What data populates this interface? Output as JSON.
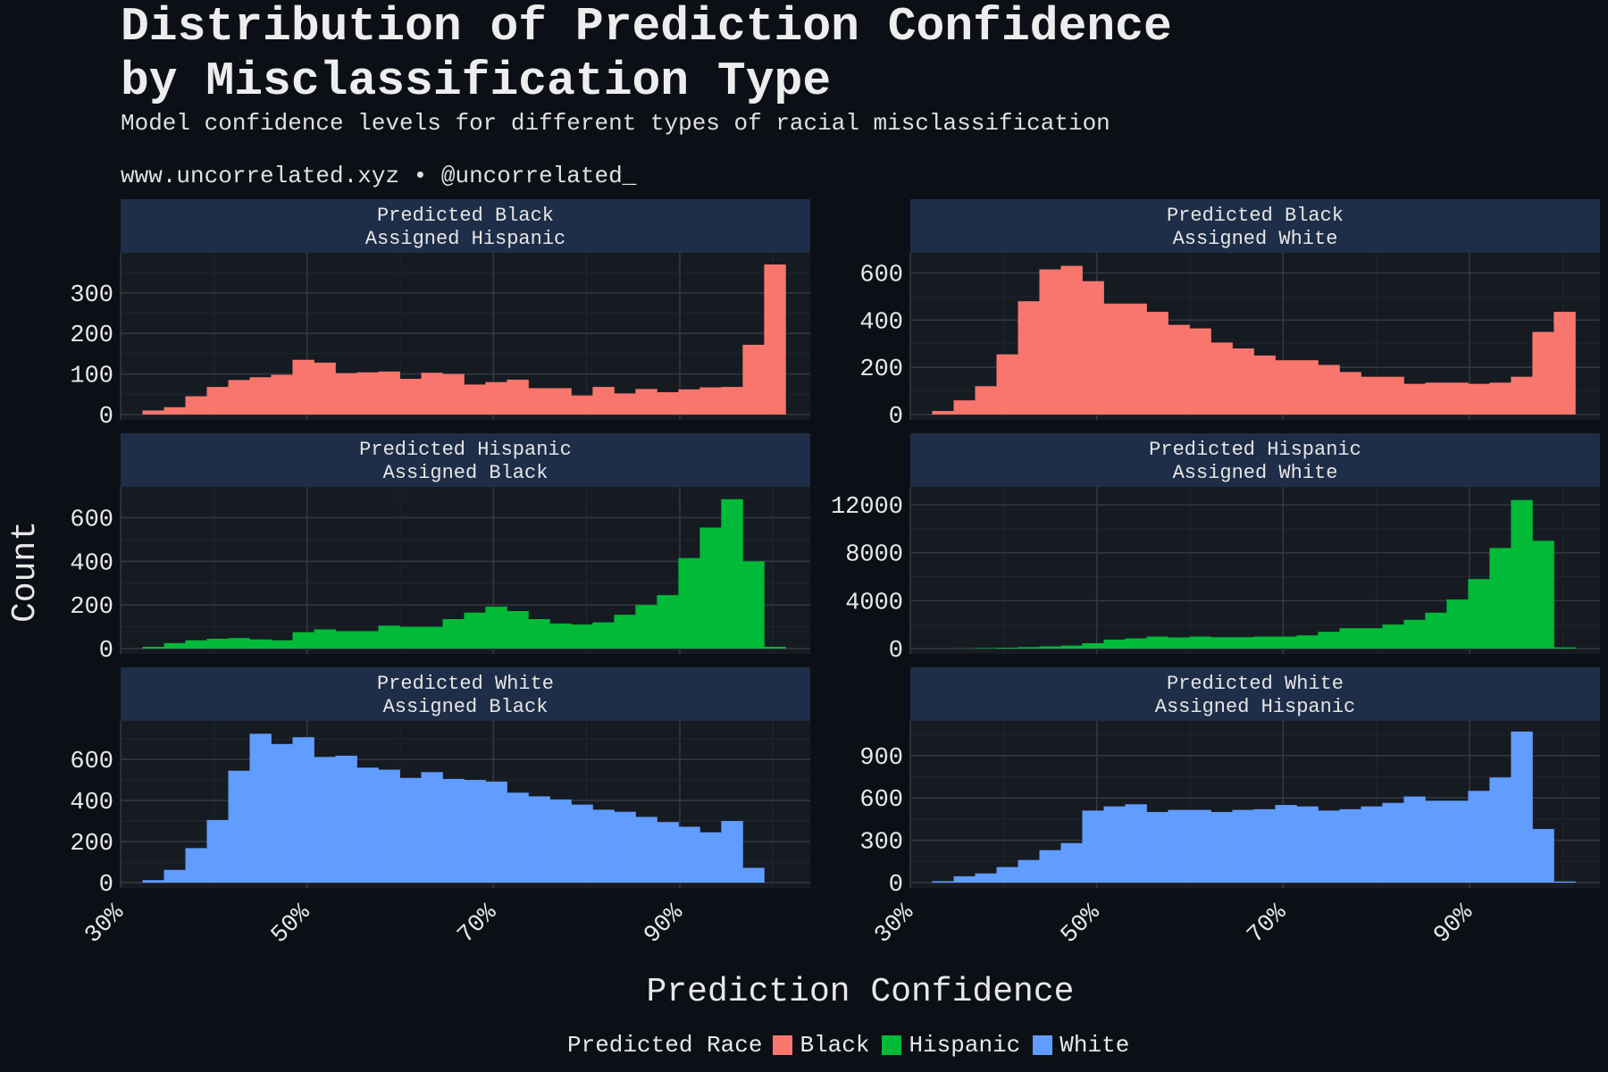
{
  "chart_data": {
    "type": "bar",
    "title": "Distribution of Prediction Confidence\nby Misclassification Type",
    "subtitle": "Model confidence levels for different types of racial misclassification",
    "caption": "www.uncorrelated.xyz • @uncorrelated_",
    "xlabel": "Prediction Confidence",
    "ylabel": "Count",
    "x_ticks": [
      0.3,
      0.5,
      0.7,
      0.9
    ],
    "x_tick_labels": [
      "30%",
      "50%",
      "70%",
      "90%"
    ],
    "xlim": [
      0.3,
      1.04
    ],
    "bin_centers": [
      0.335,
      0.358,
      0.381,
      0.404,
      0.427,
      0.45,
      0.473,
      0.496,
      0.519,
      0.542,
      0.565,
      0.588,
      0.611,
      0.634,
      0.657,
      0.68,
      0.703,
      0.726,
      0.749,
      0.772,
      0.795,
      0.818,
      0.841,
      0.864,
      0.887,
      0.91,
      0.933,
      0.956,
      0.979,
      1.002
    ],
    "legend": {
      "title": "Predicted Race",
      "entries": [
        {
          "label": "Black",
          "color": "#f8766d"
        },
        {
          "label": "Hispanic",
          "color": "#00ba38"
        },
        {
          "label": "White",
          "color": "#619cff"
        }
      ]
    },
    "panels": [
      {
        "strip": [
          "Predicted Black",
          "Assigned Hispanic"
        ],
        "color": "#f8766d",
        "y_ticks": [
          0,
          100,
          200,
          300
        ],
        "ylim": [
          0,
          390
        ],
        "values": [
          10,
          18,
          45,
          68,
          85,
          92,
          98,
          135,
          128,
          102,
          104,
          106,
          88,
          103,
          100,
          74,
          80,
          86,
          65,
          65,
          47,
          68,
          52,
          63,
          55,
          62,
          67,
          68,
          172,
          370
        ]
      },
      {
        "strip": [
          "Predicted Black",
          "Assigned White"
        ],
        "color": "#f8766d",
        "y_ticks": [
          0,
          200,
          400,
          600
        ],
        "ylim": [
          0,
          670
        ],
        "values": [
          15,
          60,
          120,
          255,
          480,
          615,
          630,
          565,
          470,
          470,
          435,
          380,
          365,
          305,
          280,
          250,
          230,
          230,
          210,
          180,
          160,
          160,
          130,
          135,
          135,
          130,
          135,
          160,
          350,
          435
        ]
      },
      {
        "strip": [
          "Predicted Hispanic",
          "Assigned Black"
        ],
        "color": "#00ba38",
        "y_ticks": [
          0,
          200,
          400,
          600
        ],
        "ylim": [
          0,
          725
        ],
        "values": [
          8,
          25,
          38,
          45,
          48,
          42,
          38,
          75,
          88,
          80,
          80,
          105,
          100,
          100,
          135,
          165,
          192,
          172,
          135,
          115,
          110,
          120,
          155,
          200,
          245,
          415,
          555,
          685,
          400,
          8
        ]
      },
      {
        "strip": [
          "Predicted Hispanic",
          "Assigned White"
        ],
        "color": "#00ba38",
        "y_ticks": [
          0,
          4000,
          8000,
          12000
        ],
        "ylim": [
          0,
          13200
        ],
        "values": [
          0,
          10,
          40,
          70,
          120,
          180,
          250,
          450,
          750,
          850,
          1000,
          930,
          1000,
          950,
          950,
          1000,
          1000,
          1100,
          1400,
          1700,
          1700,
          2000,
          2400,
          3000,
          4100,
          5800,
          8400,
          12400,
          9000,
          100
        ]
      },
      {
        "strip": [
          "Predicted White",
          "Assigned Black"
        ],
        "color": "#619cff",
        "y_ticks": [
          0,
          200,
          400,
          600
        ],
        "ylim": [
          0,
          770
        ],
        "values": [
          12,
          62,
          168,
          305,
          545,
          725,
          675,
          708,
          612,
          618,
          560,
          550,
          510,
          538,
          505,
          500,
          492,
          438,
          420,
          405,
          380,
          355,
          345,
          320,
          295,
          272,
          245,
          300,
          72,
          0
        ]
      },
      {
        "strip": [
          "Predicted White",
          "Assigned Hispanic"
        ],
        "color": "#619cff",
        "y_ticks": [
          0,
          300,
          600,
          900
        ],
        "ylim": [
          0,
          1120
        ],
        "values": [
          10,
          45,
          65,
          110,
          160,
          230,
          280,
          510,
          540,
          555,
          500,
          515,
          515,
          500,
          515,
          520,
          550,
          540,
          510,
          520,
          540,
          565,
          610,
          580,
          580,
          650,
          745,
          1070,
          380,
          8
        ]
      }
    ]
  }
}
